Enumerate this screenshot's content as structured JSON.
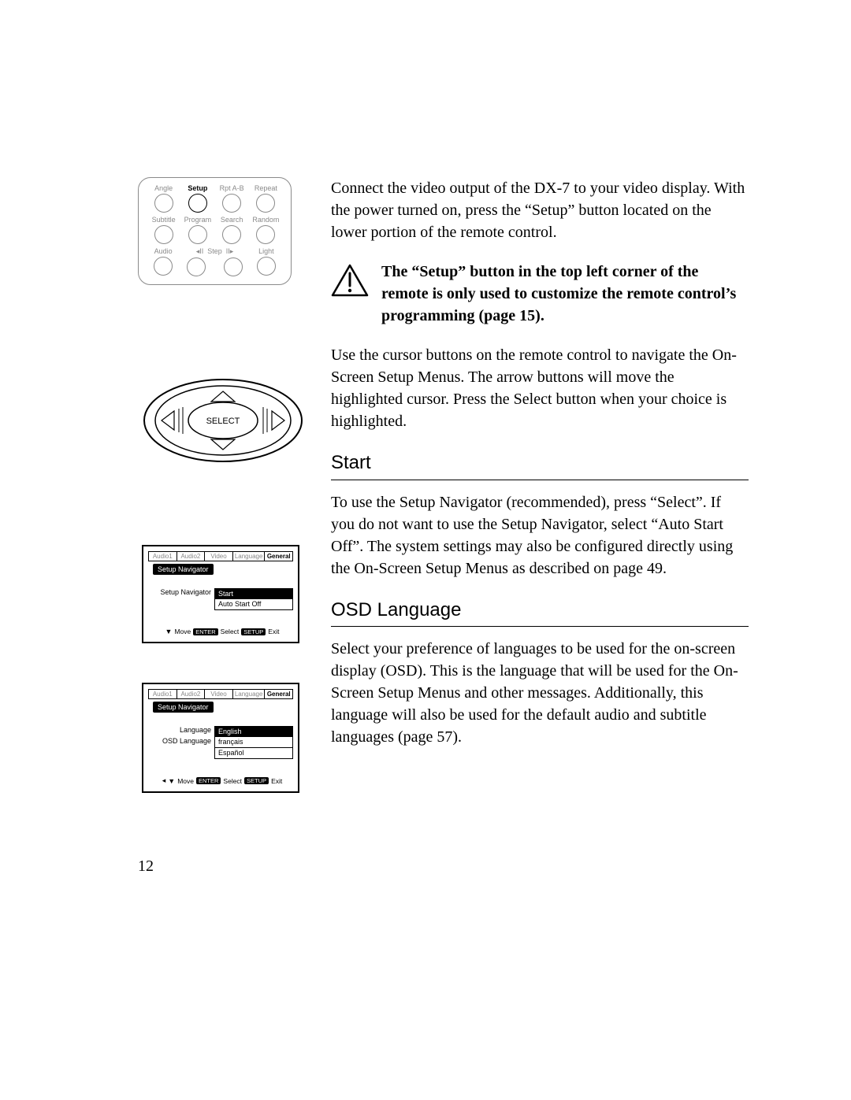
{
  "page_number": "12",
  "remote": {
    "rows": [
      [
        {
          "label": "Angle",
          "primary": false
        },
        {
          "label": "Setup",
          "primary": true
        },
        {
          "label": "Rpt A-B",
          "primary": false
        },
        {
          "label": "Repeat",
          "primary": false
        }
      ],
      [
        {
          "label": "Subtitle",
          "primary": false
        },
        {
          "label": "Program",
          "primary": false
        },
        {
          "label": "Search",
          "primary": false
        },
        {
          "label": "Random",
          "primary": false
        }
      ],
      [
        {
          "label": "Audio",
          "primary": false
        },
        {
          "label": "◂II  Step  II▸",
          "primary": false,
          "step": true
        },
        {
          "label": "",
          "primary": false,
          "skip_label": true
        },
        {
          "label": "Light",
          "primary": false
        }
      ]
    ]
  },
  "pad": {
    "center_label": "SELECT"
  },
  "osd1": {
    "tabs": [
      "Audio1",
      "Audio2",
      "Video",
      "Language",
      "General"
    ],
    "active_tab": 4,
    "chip": "Setup Navigator",
    "left_label1": "Setup Navigator",
    "opt_selected": "Start",
    "opt_other": "Auto Start Off",
    "foot": {
      "move": "Move",
      "enter_tag": "ENTER",
      "select": "Select",
      "setup_tag": "SETUP",
      "exit": "Exit"
    }
  },
  "osd2": {
    "tabs": [
      "Audio1",
      "Audio2",
      "Video",
      "Language",
      "General"
    ],
    "active_tab": 4,
    "chip": "Setup Navigator",
    "left_label1": "Language",
    "left_label2": "OSD Language",
    "opt_selected": "English",
    "opt_other1": "français",
    "opt_other2": "Español",
    "foot": {
      "move": "Move",
      "enter_tag": "ENTER",
      "select": "Select",
      "setup_tag": "SETUP",
      "exit": "Exit"
    }
  },
  "text": {
    "p1": "Connect the video output of the DX-7 to your video display. With the power turned on, press the “Setup” button located on the lower portion of the remote control.",
    "warn": "The “Setup” button in the top left corner of the remote is only used to customize the remote control’s programming (page 15).",
    "p2": "Use the cursor buttons on the remote control to navigate the On-Screen Setup Menus. The arrow buttons will move the highlighted cursor. Press the Select button when your choice is highlighted.",
    "h_start": "Start",
    "p3": "To use the Setup Navigator (recommended), press “Select”. If you do not want to use the Setup Navigator, select “Auto Start Off”. The system settings may also be configured directly using the On-Screen Setup Menus as described on page 49.",
    "h_osd": "OSD Language",
    "p4": "Select your preference of languages to be used for the on-screen display (OSD). This is the language that will be used for the On-Screen Setup Menus and other messages. Additionally, this language will also be used for the default audio and subtitle languages (page 57)."
  },
  "colors": {
    "text": "#000000",
    "muted": "#8a8a8a",
    "background": "#ffffff"
  }
}
